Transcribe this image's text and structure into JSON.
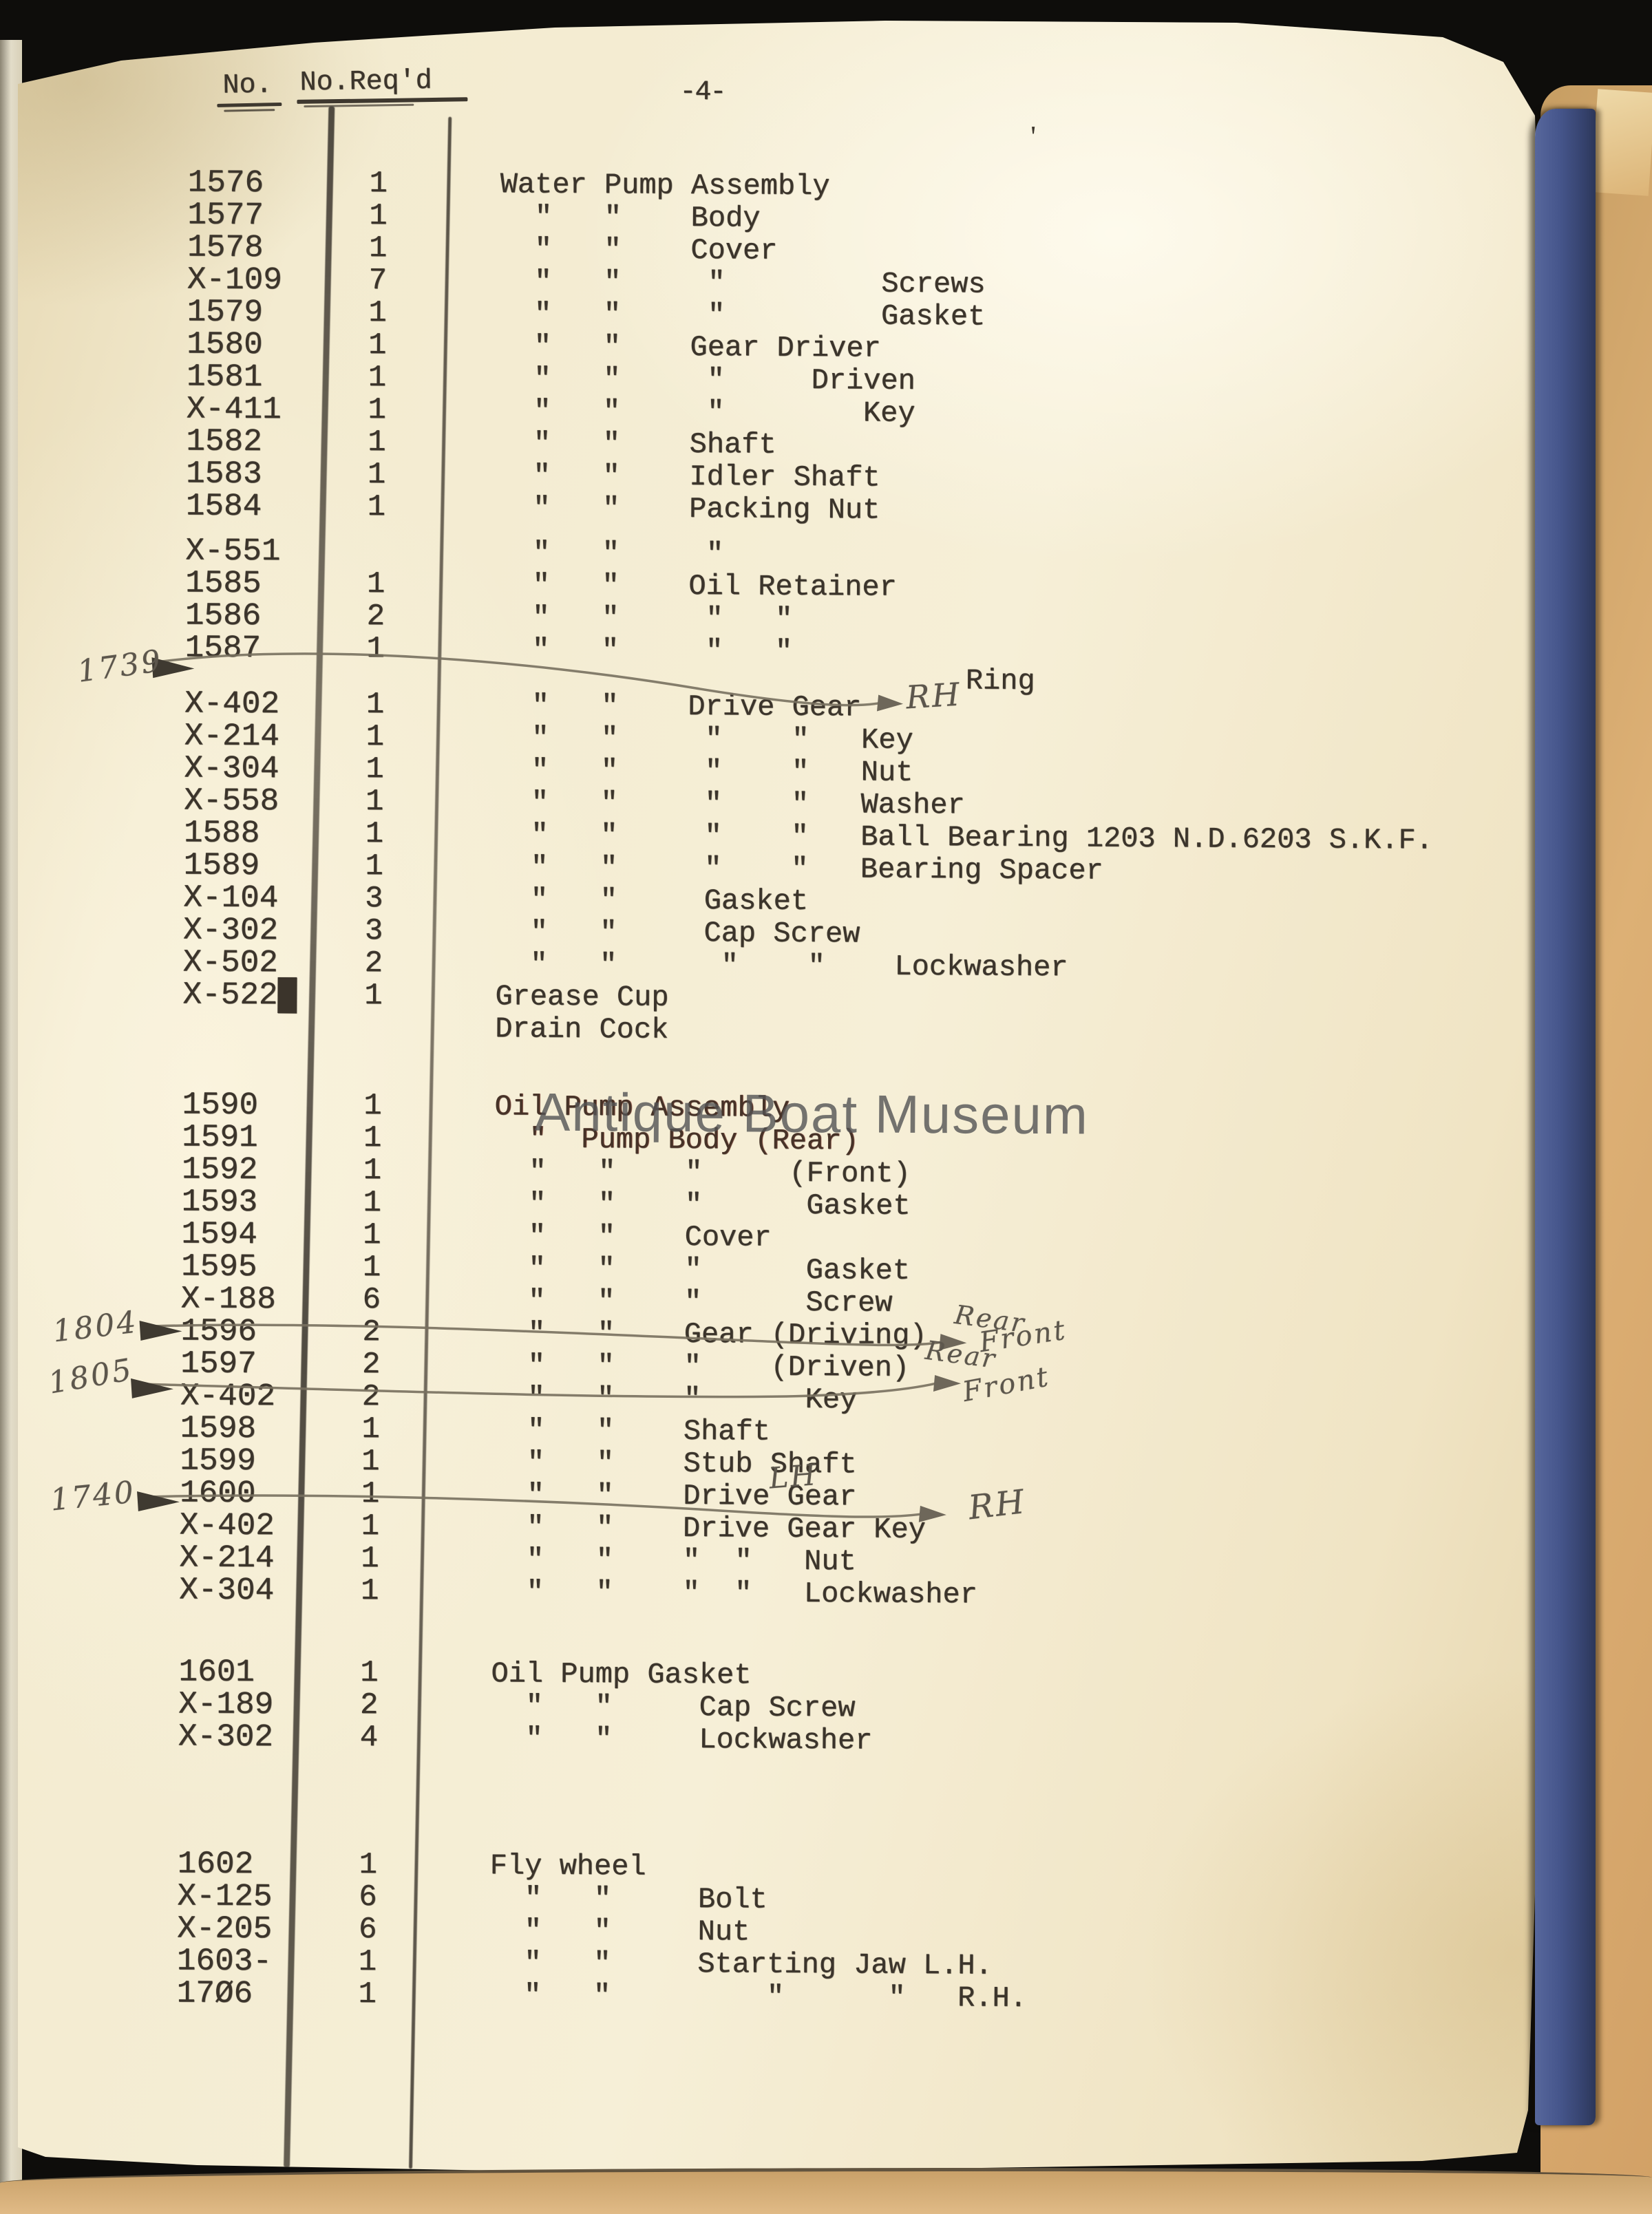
{
  "document": {
    "header": {
      "col_no_label": "No.",
      "col_req_label": "No.Req'd",
      "page_number": "-4-",
      "stray_mark": "'"
    },
    "watermark_text": "Antique Boat Museum",
    "colors": {
      "background": "#0e0d0b",
      "paper": "#f3ead0",
      "ink": "#3b342b",
      "pencil": "#5c564c",
      "cover_blue": "#46568c",
      "page_edge_tan": "#d8a86c"
    },
    "sections": [
      {
        "name": "water-pump",
        "rows": [
          {
            "no": "1576",
            "req": "1",
            "desc": "Water Pump Assembly"
          },
          {
            "no": "1577",
            "req": "1",
            "desc": "  \"   \"    Body"
          },
          {
            "no": "1578",
            "req": "1",
            "desc": "  \"   \"    Cover"
          },
          {
            "no": "X-109",
            "req": "7",
            "desc": "  \"   \"     \"         Screws"
          },
          {
            "no": "1579",
            "req": "1",
            "desc": "  \"   \"     \"         Gasket"
          },
          {
            "no": "1580",
            "req": "1",
            "desc": "  \"   \"    Gear Driver"
          },
          {
            "no": "1581",
            "req": "1",
            "desc": "  \"   \"     \"     Driven"
          },
          {
            "no": "X-411",
            "req": "1",
            "desc": "  \"   \"     \"        Key"
          },
          {
            "no": "1582",
            "req": "1",
            "desc": "  \"   \"    Shaft"
          },
          {
            "no": "1583",
            "req": "1",
            "desc": "  \"   \"    Idler Shaft"
          },
          {
            "no": "1584",
            "req": "1",
            "desc": "  \"   \"    Packing Nut"
          },
          {
            "no": "X-551",
            "req": "",
            "desc": "  \"   \"     \"",
            "gap": true
          },
          {
            "no": "1585",
            "req": "1",
            "desc": "  \"   \"    Oil Retainer"
          },
          {
            "no": "1586",
            "req": "2",
            "desc": "  \"   \"     \"   \""
          },
          {
            "no": "1587",
            "req": "1",
            "desc": "  \"   \"     \"   \""
          },
          {
            "no": "",
            "req": "",
            "desc": "                           Ring",
            "small": true
          },
          {
            "no": "X-402",
            "req": "1",
            "desc": "  \"   \"    Drive Gear"
          },
          {
            "no": "X-214",
            "req": "1",
            "desc": "  \"   \"     \"    \"   Key"
          },
          {
            "no": "X-304",
            "req": "1",
            "desc": "  \"   \"     \"    \"   Nut"
          },
          {
            "no": "X-558",
            "req": "1",
            "desc": "  \"   \"     \"    \"   Washer"
          },
          {
            "no": "1588",
            "req": "1",
            "desc": "  \"   \"     \"    \"   Ball Bearing 1203 N.D.6203 S.K.F."
          },
          {
            "no": "1589",
            "req": "1",
            "desc": "  \"   \"     \"    \"   Bearing Spacer"
          },
          {
            "no": "X-104",
            "req": "3",
            "desc": "  \"   \"     Gasket"
          },
          {
            "no": "X-302",
            "req": "3",
            "desc": "  \"   \"     Cap Screw"
          },
          {
            "no": "X-502",
            "req": "2",
            "desc": "  \"   \"      \"    \"    Lockwasher"
          },
          {
            "no": "X-522█",
            "req": "1",
            "desc": "Grease Cup"
          },
          {
            "no": "",
            "req": "",
            "desc": "Drain Cock"
          }
        ]
      },
      {
        "name": "oil-pump",
        "rows": [
          {
            "no": "1590",
            "req": "1",
            "desc": "Oil Pump Assembly",
            "overstruck": true
          },
          {
            "no": "1591",
            "req": "1",
            "desc": "  \"  Pump Body (Rear)",
            "overstruck": true
          },
          {
            "no": "1592",
            "req": "1",
            "desc": "  \"   \"    \"     (Front)"
          },
          {
            "no": "1593",
            "req": "1",
            "desc": "  \"   \"    \"      Gasket"
          },
          {
            "no": "1594",
            "req": "1",
            "desc": "  \"   \"    Cover"
          },
          {
            "no": "1595",
            "req": "1",
            "desc": "  \"   \"    \"      Gasket"
          },
          {
            "no": "X-188",
            "req": "6",
            "desc": "  \"   \"    \"      Screw"
          },
          {
            "no": "1596",
            "req": "2",
            "desc": "  \"   \"    Gear (Driving)"
          },
          {
            "no": "1597",
            "req": "2",
            "desc": "  \"   \"    \"    (Driven)"
          },
          {
            "no": "X-402",
            "req": "2",
            "desc": "  \"   \"    \"      Key"
          },
          {
            "no": "1598",
            "req": "1",
            "desc": "  \"   \"    Shaft"
          },
          {
            "no": "1599",
            "req": "1",
            "desc": "  \"   \"    Stub Shaft"
          },
          {
            "no": "1600",
            "req": "1",
            "desc": "  \"   \"    Drive Gear"
          },
          {
            "no": "X-402",
            "req": "1",
            "desc": "  \"   \"    Drive Gear Key"
          },
          {
            "no": "X-214",
            "req": "1",
            "desc": "  \"   \"    \"  \"   Nut"
          },
          {
            "no": "X-304",
            "req": "1",
            "desc": "  \"   \"    \"  \"   Lockwasher"
          }
        ]
      },
      {
        "name": "oil-pump-gasket",
        "rows": [
          {
            "no": "1601",
            "req": "1",
            "desc": "Oil Pump Gasket"
          },
          {
            "no": "X-189",
            "req": "2",
            "desc": "  \"   \"     Cap Screw"
          },
          {
            "no": "X-302",
            "req": "4",
            "desc": "  \"   \"     Lockwasher"
          }
        ]
      },
      {
        "name": "fly-wheel",
        "rows": [
          {
            "no": "1602",
            "req": "1",
            "desc": "Fly wheel"
          },
          {
            "no": "X-125",
            "req": "6",
            "desc": "  \"   \"     Bolt"
          },
          {
            "no": "X-205",
            "req": "6",
            "desc": "  \"   \"     Nut"
          },
          {
            "no": "1603-",
            "req": "1",
            "desc": "  \"   \"     Starting Jaw L.H."
          },
          {
            "no": "17Ø6",
            "req": "1",
            "desc": "  \"   \"         \"      \"   R.H."
          }
        ]
      }
    ],
    "annotations": {
      "left_1739": "1739",
      "rh_water_pump_key": "RH",
      "left_1804": "1804",
      "left_1805": "1805",
      "rear_driving": "Rear",
      "rear_driven": "Rear",
      "front_driven": "Front",
      "front_key": "Front",
      "left_1740": "1740",
      "lh_drive_gear": "LH",
      "rh_drive_gear_key": "RH"
    }
  }
}
